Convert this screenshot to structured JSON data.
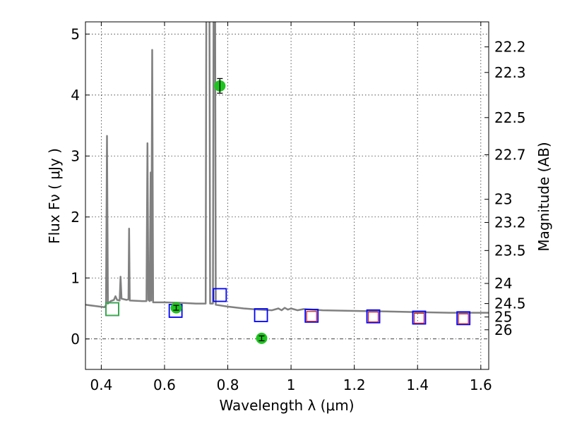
{
  "chart_data": {
    "type": "scatter",
    "xlabel": "Wavelength  λ (μm)",
    "ylabel": "Flux  Fν  ( μJy )",
    "y2label": "Magnitude (AB)",
    "xlim": [
      0.35,
      1.625
    ],
    "ylim": [
      -0.5,
      5.2
    ],
    "x_ticks": [
      0.4,
      0.6,
      0.8,
      1,
      1.2,
      1.4,
      1.6
    ],
    "x_tick_labels": [
      "0.4",
      "0.6",
      "0.8",
      "1",
      "1.2",
      "1.4",
      "1.6"
    ],
    "y_ticks": [
      0,
      1,
      2,
      3,
      4,
      5
    ],
    "y_tick_labels": [
      "0",
      "1",
      "2",
      "3",
      "4",
      "5"
    ],
    "y2_ticks": [
      {
        "label": "22.2",
        "flux": 4.79
      },
      {
        "label": "22.3",
        "flux": 4.37
      },
      {
        "label": "22.5",
        "flux": 3.63
      },
      {
        "label": "22.7",
        "flux": 3.02
      },
      {
        "label": "23",
        "flux": 2.29
      },
      {
        "label": "23.2",
        "flux": 1.91
      },
      {
        "label": "23.5",
        "flux": 1.45
      },
      {
        "label": "24",
        "flux": 0.91
      },
      {
        "label": "24.5",
        "flux": 0.58
      },
      {
        "label": "25",
        "flux": 0.36
      },
      {
        "label": "26",
        "flux": 0.15
      }
    ],
    "grid": true,
    "series": [
      {
        "kind": "line",
        "color": "#808080",
        "points": [
          [
            0.35,
            0.56
          ],
          [
            0.38,
            0.54
          ],
          [
            0.41,
            0.52
          ],
          [
            0.415,
            0.55
          ],
          [
            0.418,
            3.33
          ],
          [
            0.421,
            0.58
          ],
          [
            0.43,
            0.62
          ],
          [
            0.44,
            0.64
          ],
          [
            0.445,
            0.7
          ],
          [
            0.45,
            0.64
          ],
          [
            0.458,
            0.63
          ],
          [
            0.461,
            1.02
          ],
          [
            0.464,
            0.66
          ],
          [
            0.48,
            0.64
          ],
          [
            0.486,
            0.65
          ],
          [
            0.488,
            1.81
          ],
          [
            0.49,
            0.63
          ],
          [
            0.53,
            0.62
          ],
          [
            0.543,
            0.62
          ],
          [
            0.546,
            3.21
          ],
          [
            0.549,
            0.64
          ],
          [
            0.553,
            0.62
          ],
          [
            0.556,
            2.73
          ],
          [
            0.558,
            0.63
          ],
          [
            0.561,
            4.74
          ],
          [
            0.564,
            0.6
          ],
          [
            0.6,
            0.6
          ],
          [
            0.66,
            0.59
          ],
          [
            0.7,
            0.58
          ],
          [
            0.73,
            0.58
          ],
          [
            0.732,
            5.3
          ],
          [
            0.742,
            5.3
          ],
          [
            0.744,
            0.58
          ],
          [
            0.753,
            0.58
          ],
          [
            0.755,
            5.3
          ],
          [
            0.76,
            5.3
          ],
          [
            0.762,
            0.56
          ],
          [
            0.8,
            0.53
          ],
          [
            0.85,
            0.5
          ],
          [
            0.9,
            0.48
          ],
          [
            0.94,
            0.47
          ],
          [
            0.96,
            0.5
          ],
          [
            0.97,
            0.47
          ],
          [
            0.98,
            0.51
          ],
          [
            0.99,
            0.48
          ],
          [
            1.0,
            0.5
          ],
          [
            1.02,
            0.47
          ],
          [
            1.04,
            0.49
          ],
          [
            1.1,
            0.47
          ],
          [
            1.2,
            0.46
          ],
          [
            1.3,
            0.45
          ],
          [
            1.4,
            0.44
          ],
          [
            1.5,
            0.43
          ],
          [
            1.625,
            0.43
          ]
        ]
      },
      {
        "kind": "box",
        "name": "blue-box",
        "color": "#0000ff",
        "points": [
          [
            0.435,
            0.49
          ],
          [
            0.635,
            0.46
          ],
          [
            0.775,
            0.72
          ],
          [
            0.905,
            0.39
          ],
          [
            1.065,
            0.38
          ],
          [
            1.26,
            0.37
          ],
          [
            1.405,
            0.35
          ],
          [
            1.545,
            0.34
          ]
        ]
      },
      {
        "kind": "box",
        "name": "red-box",
        "color": "#d62728",
        "points": [
          [
            1.065,
            0.37
          ],
          [
            1.26,
            0.36
          ],
          [
            1.405,
            0.34
          ],
          [
            1.545,
            0.33
          ]
        ]
      },
      {
        "kind": "box",
        "name": "green-box",
        "color": "#3cb043",
        "points": [
          [
            0.435,
            0.49
          ]
        ]
      },
      {
        "kind": "point",
        "name": "green-point",
        "color": "#1fc41f",
        "points": [
          [
            0.637,
            0.51,
            0.04
          ],
          [
            0.775,
            4.15,
            0.12
          ],
          [
            0.907,
            0.01,
            0.04
          ]
        ]
      }
    ]
  }
}
